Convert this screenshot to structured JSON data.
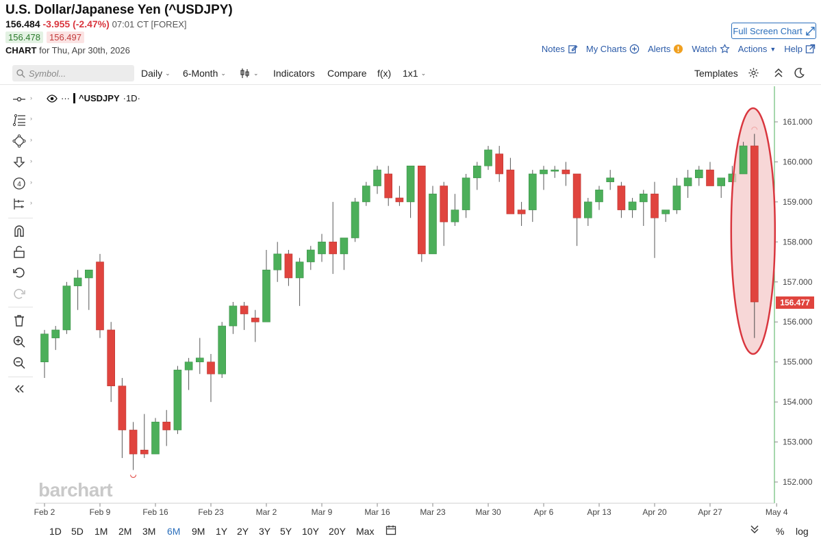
{
  "header": {
    "title": "U.S. Dollar/Japanese Yen (^USDJPY)",
    "last": "156.484",
    "change": "-3.955 (-2.47%)",
    "time": "07:01 CT [FOREX]",
    "bid": "156.478",
    "ask": "156.497",
    "chart_label": "CHART",
    "chart_date": "for Thu, Apr 30th, 2026"
  },
  "links": {
    "fullscreen": "Full Screen Chart",
    "notes": "Notes",
    "my_charts": "My Charts",
    "alerts": "Alerts",
    "watch": "Watch",
    "actions": "Actions",
    "help": "Help"
  },
  "toolbar": {
    "symbol_placeholder": "Symbol...",
    "interval": "Daily",
    "range": "6-Month",
    "indicators": "Indicators",
    "compare": "Compare",
    "fx": "f(x)",
    "layout": "1x1",
    "templates": "Templates"
  },
  "legend": {
    "dots": "···",
    "symbol": "^USDJPY",
    "interval": "·1D·"
  },
  "watermark": "barchart",
  "last_price_tag": "156.477",
  "periods": [
    "1D",
    "5D",
    "1M",
    "2M",
    "3M",
    "6M",
    "9M",
    "1Y",
    "2Y",
    "3Y",
    "5Y",
    "10Y",
    "20Y",
    "Max"
  ],
  "active_period": "6M",
  "bottom_right": {
    "percent": "%",
    "log": "log"
  },
  "colors": {
    "up": "#4caf5a",
    "down": "#e0443e",
    "accent": "#2a6ebb",
    "highlight_fill": "#f4c9c9",
    "highlight_stroke": "#d9363e"
  },
  "chart_data": {
    "type": "candlestick",
    "title": "^USDJPY",
    "ylim": [
      151.5,
      161.8
    ],
    "y_ticks": [
      "152.000",
      "153.000",
      "154.000",
      "155.000",
      "156.000",
      "157.000",
      "158.000",
      "159.000",
      "160.000",
      "161.000"
    ],
    "x_ticks": [
      "Feb 2",
      "Feb 9",
      "Feb 16",
      "Feb 23",
      "Mar 2",
      "Mar 9",
      "Mar 16",
      "Mar 23",
      "Mar 30",
      "Apr 6",
      "Apr 13",
      "Apr 20",
      "Apr 27",
      "May 4"
    ],
    "fields": [
      "date",
      "open",
      "high",
      "low",
      "close"
    ],
    "candles": [
      [
        "Feb 2",
        155.0,
        155.8,
        154.6,
        155.7
      ],
      [
        "Feb 3",
        155.6,
        155.9,
        155.3,
        155.8
      ],
      [
        "Feb 4",
        155.8,
        157.0,
        155.7,
        156.9
      ],
      [
        "Feb 5",
        156.9,
        157.3,
        156.3,
        157.1
      ],
      [
        "Feb 6",
        157.1,
        157.3,
        156.3,
        157.3
      ],
      [
        "Feb 9",
        157.5,
        157.7,
        155.6,
        155.8
      ],
      [
        "Feb 10",
        155.8,
        156.0,
        154.0,
        154.4
      ],
      [
        "Feb 11",
        154.4,
        154.6,
        152.6,
        153.3
      ],
      [
        "Feb 12",
        153.3,
        153.5,
        152.3,
        152.7
      ],
      [
        "Feb 13",
        152.8,
        153.7,
        152.6,
        152.7
      ],
      [
        "Feb 16",
        152.7,
        153.6,
        152.7,
        153.5
      ],
      [
        "Feb 17",
        153.5,
        153.8,
        152.9,
        153.3
      ],
      [
        "Feb 18",
        153.3,
        154.9,
        153.2,
        154.8
      ],
      [
        "Feb 19",
        154.8,
        155.1,
        154.3,
        155.0
      ],
      [
        "Feb 20",
        155.0,
        155.6,
        154.7,
        155.1
      ],
      [
        "Feb 23",
        155.0,
        155.2,
        154.0,
        154.7
      ],
      [
        "Feb 24",
        154.7,
        156.0,
        154.6,
        155.9
      ],
      [
        "Feb 25",
        155.9,
        156.5,
        155.7,
        156.4
      ],
      [
        "Feb 26",
        156.4,
        156.5,
        155.8,
        156.2
      ],
      [
        "Feb 27",
        156.1,
        156.3,
        155.5,
        156.0
      ],
      [
        "Mar 2",
        156.0,
        157.8,
        156.0,
        157.3
      ],
      [
        "Mar 3",
        157.3,
        158.0,
        157.0,
        157.7
      ],
      [
        "Mar 4",
        157.7,
        157.8,
        156.9,
        157.1
      ],
      [
        "Mar 5",
        157.1,
        157.6,
        156.4,
        157.5
      ],
      [
        "Mar 6",
        157.5,
        157.9,
        157.3,
        157.8
      ],
      [
        "Mar 9",
        157.7,
        158.2,
        157.5,
        158.0
      ],
      [
        "Mar 10",
        158.0,
        159.0,
        157.2,
        157.7
      ],
      [
        "Mar 11",
        157.7,
        158.1,
        157.3,
        158.1
      ],
      [
        "Mar 12",
        158.1,
        159.1,
        158.0,
        159.0
      ],
      [
        "Mar 13",
        159.0,
        159.5,
        158.9,
        159.4
      ],
      [
        "Mar 16",
        159.4,
        159.9,
        159.2,
        159.8
      ],
      [
        "Mar 17",
        159.7,
        159.9,
        158.9,
        159.1
      ],
      [
        "Mar 18",
        159.1,
        159.4,
        158.9,
        159.0
      ],
      [
        "Mar 19",
        159.0,
        159.9,
        158.6,
        159.9
      ],
      [
        "Mar 20",
        159.9,
        159.9,
        157.5,
        157.7
      ],
      [
        "Mar 23",
        157.7,
        159.4,
        157.7,
        159.2
      ],
      [
        "Mar 24",
        159.4,
        159.5,
        157.9,
        158.5
      ],
      [
        "Mar 25",
        158.5,
        159.2,
        158.4,
        158.8
      ],
      [
        "Mar 26",
        158.8,
        159.7,
        158.6,
        159.6
      ],
      [
        "Mar 27",
        159.6,
        160.0,
        159.3,
        159.9
      ],
      [
        "Mar 30",
        159.9,
        160.4,
        159.8,
        160.3
      ],
      [
        "Mar 31",
        160.2,
        160.4,
        159.5,
        159.7
      ],
      [
        "Apr 1",
        159.8,
        160.1,
        158.8,
        158.7
      ],
      [
        "Apr 2",
        158.8,
        159.0,
        158.4,
        158.7
      ],
      [
        "Apr 3",
        158.8,
        159.8,
        158.5,
        159.7
      ],
      [
        "Apr 6",
        159.7,
        159.9,
        159.3,
        159.8
      ],
      [
        "Apr 7",
        159.8,
        159.9,
        159.6,
        159.8
      ],
      [
        "Apr 8",
        159.8,
        160.0,
        159.4,
        159.7
      ],
      [
        "Apr 9",
        159.7,
        159.7,
        157.9,
        158.6
      ],
      [
        "Apr 10",
        158.6,
        159.1,
        158.4,
        159.0
      ],
      [
        "Apr 13",
        159.0,
        159.4,
        158.8,
        159.3
      ],
      [
        "Apr 14",
        159.5,
        159.8,
        159.3,
        159.6
      ],
      [
        "Apr 15",
        159.4,
        159.5,
        158.6,
        158.8
      ],
      [
        "Apr 16",
        158.8,
        159.1,
        158.6,
        159.0
      ],
      [
        "Apr 17",
        159.0,
        159.3,
        158.4,
        159.2
      ],
      [
        "Apr 20",
        159.2,
        159.5,
        157.6,
        158.6
      ],
      [
        "Apr 21",
        158.7,
        158.8,
        158.5,
        158.8
      ],
      [
        "Apr 22",
        158.8,
        159.6,
        158.7,
        159.4
      ],
      [
        "Apr 23",
        159.4,
        159.8,
        159.1,
        159.6
      ],
      [
        "Apr 24",
        159.6,
        159.9,
        159.4,
        159.8
      ],
      [
        "Apr 27",
        159.8,
        160.0,
        159.4,
        159.4
      ],
      [
        "Apr 28",
        159.4,
        159.6,
        159.1,
        159.6
      ],
      [
        "Apr 29",
        159.5,
        159.9,
        159.1,
        159.7
      ],
      [
        "Apr 30",
        159.7,
        160.5,
        159.7,
        160.4
      ],
      [
        "May 1",
        160.4,
        160.7,
        155.6,
        156.5
      ]
    ]
  }
}
